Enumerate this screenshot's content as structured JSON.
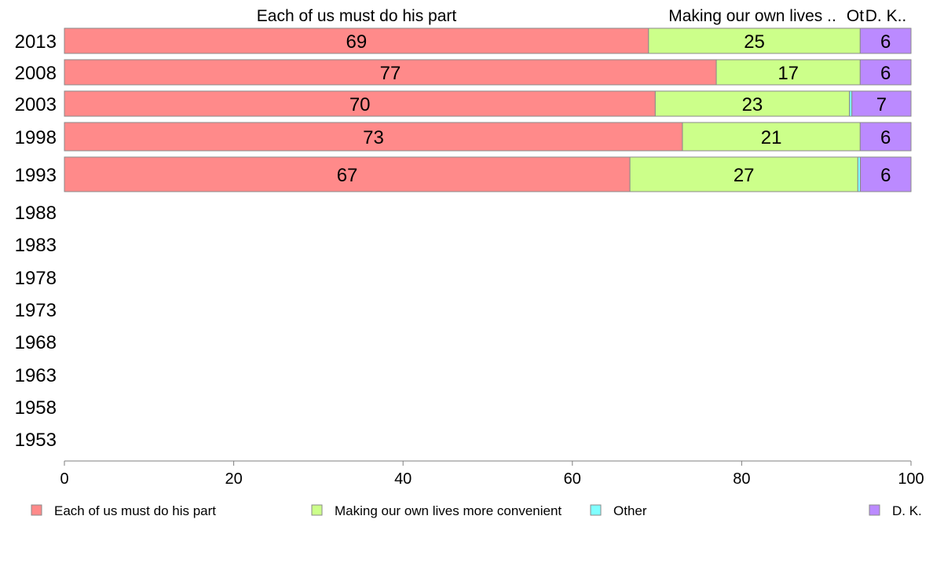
{
  "chart_data": {
    "type": "bar",
    "orientation": "horizontal",
    "stacked": true,
    "categories": [
      "2013",
      "2008",
      "2003",
      "1998",
      "1993",
      "1988",
      "1983",
      "1978",
      "1973",
      "1968",
      "1963",
      "1958",
      "1953"
    ],
    "series": [
      {
        "name": "Each of us must do his part",
        "color": "#ff8a8a",
        "values": [
          69,
          77,
          70,
          73,
          67,
          null,
          null,
          null,
          null,
          null,
          null,
          null,
          null
        ],
        "labels": [
          "69",
          "77",
          "70",
          "73",
          "67"
        ]
      },
      {
        "name": "Making our own lives more convenient",
        "color": "#ccff8a",
        "values": [
          25,
          17,
          23,
          21,
          27,
          null,
          null,
          null,
          null,
          null,
          null,
          null,
          null
        ],
        "labels": [
          "25",
          "17",
          "23",
          "21",
          "27"
        ]
      },
      {
        "name": "Other",
        "color": "#80ffff",
        "values": [
          0,
          0,
          0.3,
          0,
          0.3,
          null,
          null,
          null,
          null,
          null,
          null,
          null,
          null
        ],
        "labels": [
          "",
          "",
          "",
          "",
          ""
        ]
      },
      {
        "name": "D. K.",
        "color": "#bb8aff",
        "values": [
          6,
          6,
          7,
          6,
          6,
          null,
          null,
          null,
          null,
          null,
          null,
          null,
          null
        ],
        "labels": [
          "6",
          "6",
          "7",
          "6",
          "6"
        ]
      }
    ],
    "top_labels": [
      "Each of us must do his part",
      "Making our own lives ..",
      "Ot",
      "D. K.."
    ],
    "xlim": [
      0,
      100
    ],
    "xticks": [
      "0",
      "20",
      "40",
      "60",
      "80",
      "100"
    ],
    "grid": false,
    "legend": "bottom"
  }
}
